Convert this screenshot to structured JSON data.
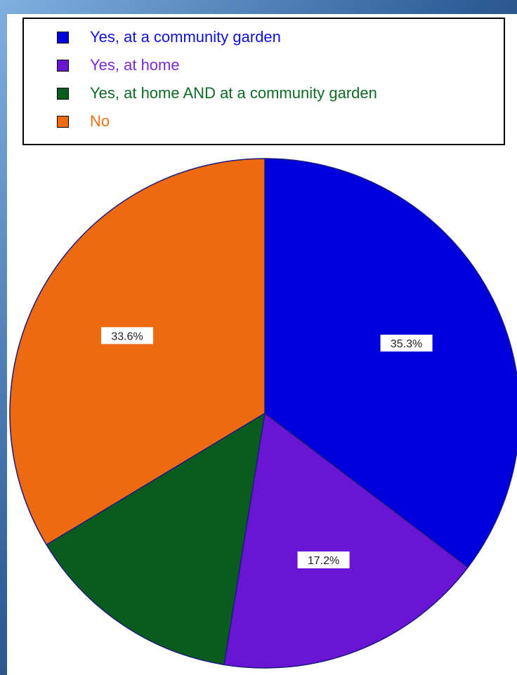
{
  "chart_data": {
    "type": "pie",
    "title": "",
    "slices": [
      {
        "label": "Yes, at a community garden",
        "value": 35.3,
        "value_label": "35.3%",
        "color": "#0000dd"
      },
      {
        "label": "Yes, at home",
        "value": 17.2,
        "value_label": "17.2%",
        "color": "#6a14d4"
      },
      {
        "label": "Yes, at home AND at a community garden",
        "value": 13.8,
        "value_label": "13.8%",
        "color": "#0a5c1e"
      },
      {
        "label": "No",
        "value": 33.6,
        "value_label": "33.6%",
        "color": "#ee6a10"
      }
    ],
    "legend_position": "top",
    "legend_text_colors": [
      "#1010e0",
      "#7a2ad8",
      "#0f6a26",
      "#f07016"
    ]
  }
}
